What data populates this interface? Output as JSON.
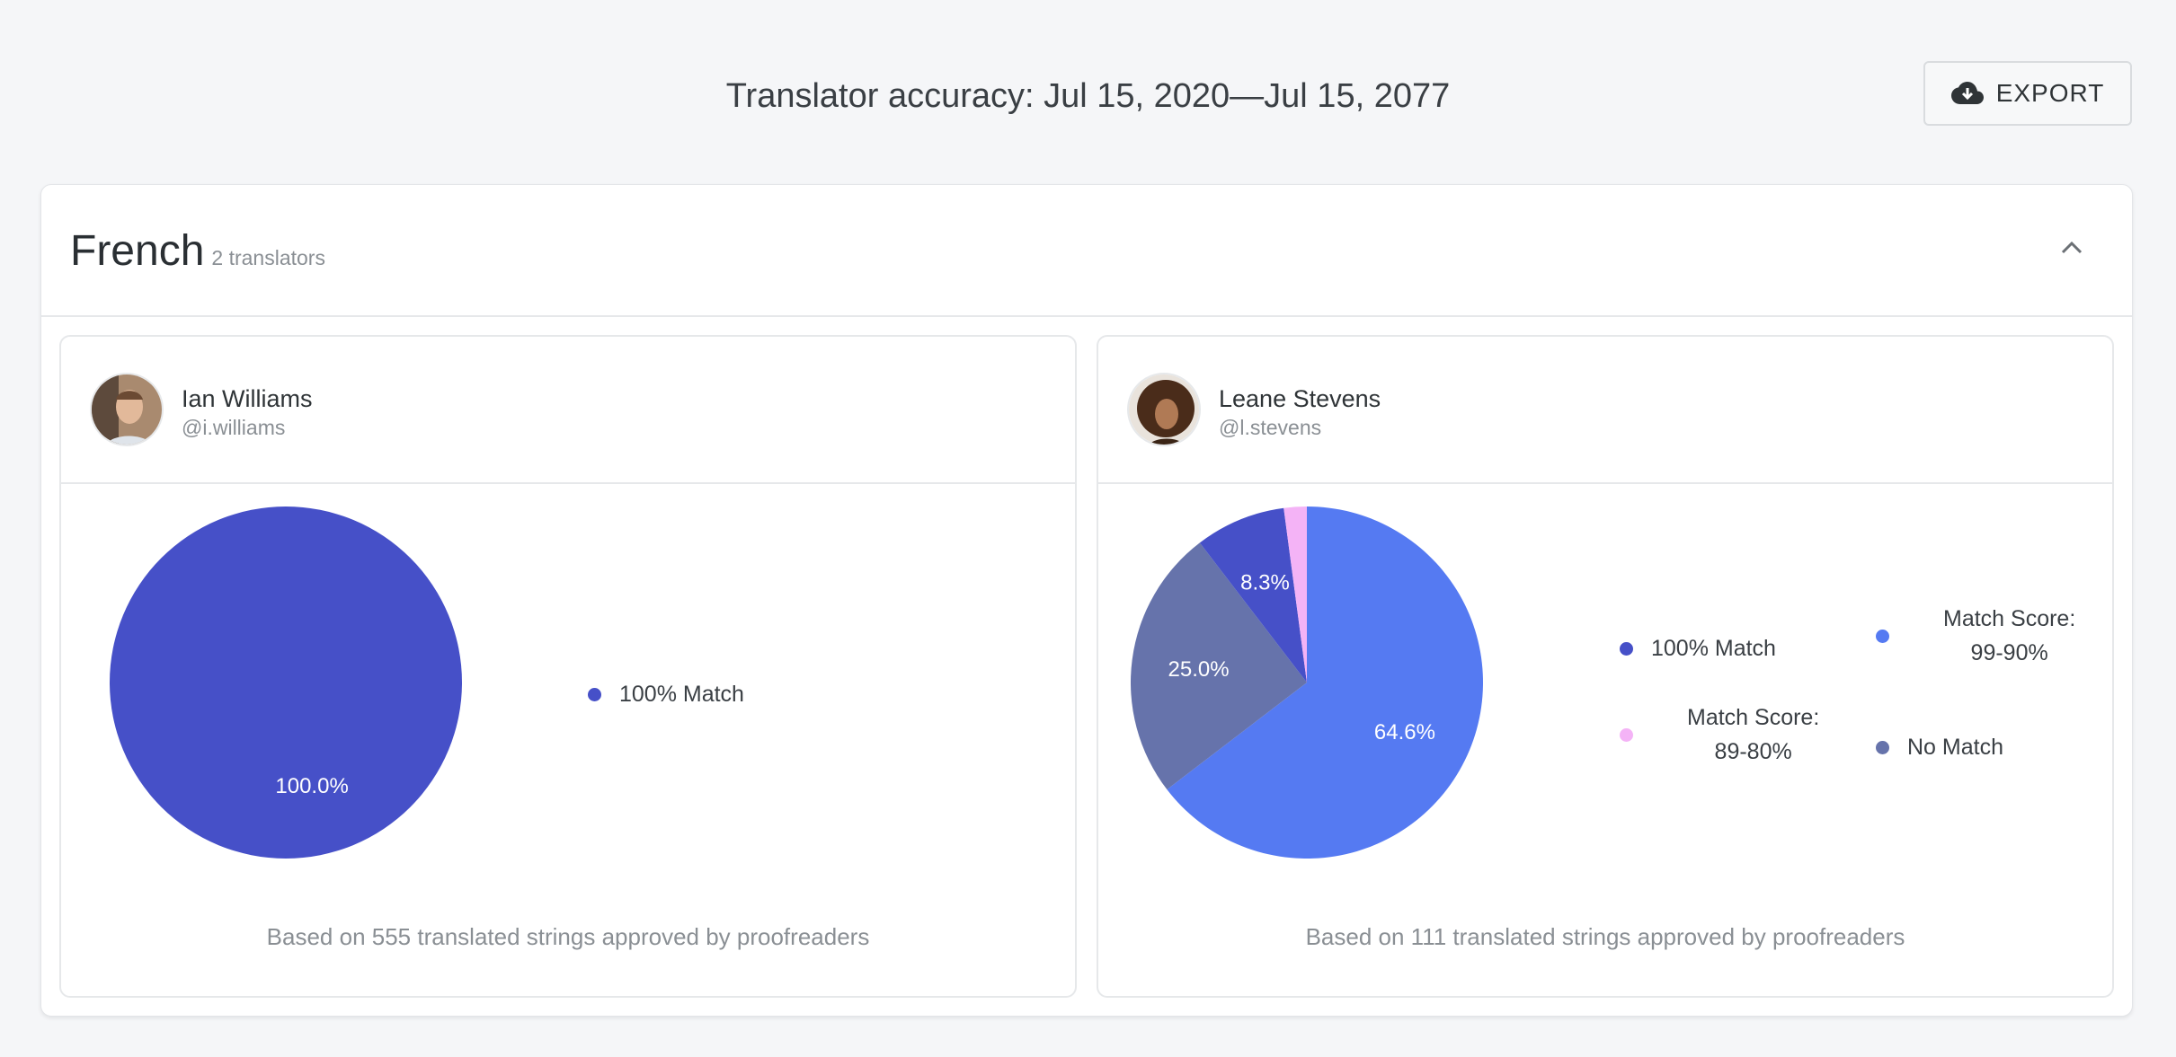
{
  "header": {
    "title": "Translator accuracy: Jul 15, 2020—Jul 15, 2077",
    "export_label": "EXPORT",
    "export_icon": "cloud-download-icon"
  },
  "group": {
    "language": "French",
    "count_label": "2 translators",
    "collapse_icon": "chevron-up-icon"
  },
  "translators": [
    {
      "name": "Ian Williams",
      "handle": "@i.williams",
      "footer": "Based on 555 translated strings approved by proofreaders",
      "chart_data": {
        "type": "pie",
        "slices": [
          {
            "label": "100% Match",
            "value": 100.0,
            "color": "#4650c8",
            "data_label": "100.0%"
          }
        ],
        "legend": [
          "100% Match"
        ]
      }
    },
    {
      "name": "Leane Stevens",
      "handle": "@l.stevens",
      "footer": "Based on 111 translated strings approved by proofreaders",
      "chart_data": {
        "type": "pie",
        "slices": [
          {
            "label": "Match Score: 99-90%",
            "value": 64.6,
            "color": "#557af2",
            "data_label": "64.6%"
          },
          {
            "label": "No Match",
            "value": 25.0,
            "color": "#6673ab",
            "data_label": "25.0%"
          },
          {
            "label": "100% Match",
            "value": 8.3,
            "color": "#4650c8",
            "data_label": "8.3%"
          },
          {
            "label": "Match Score: 89-80%",
            "value": 2.1,
            "color": "#f4b3f6",
            "data_label": ""
          }
        ],
        "legend": [
          "100% Match",
          "Match Score: 99-90%",
          "Match Score: 89-80%",
          "No Match"
        ]
      }
    }
  ],
  "legend_lines": {
    "m100": "100% Match",
    "ms_label": "Match Score:",
    "r9990": "99-90%",
    "r8980": "89-80%",
    "nomatch": "No Match"
  }
}
